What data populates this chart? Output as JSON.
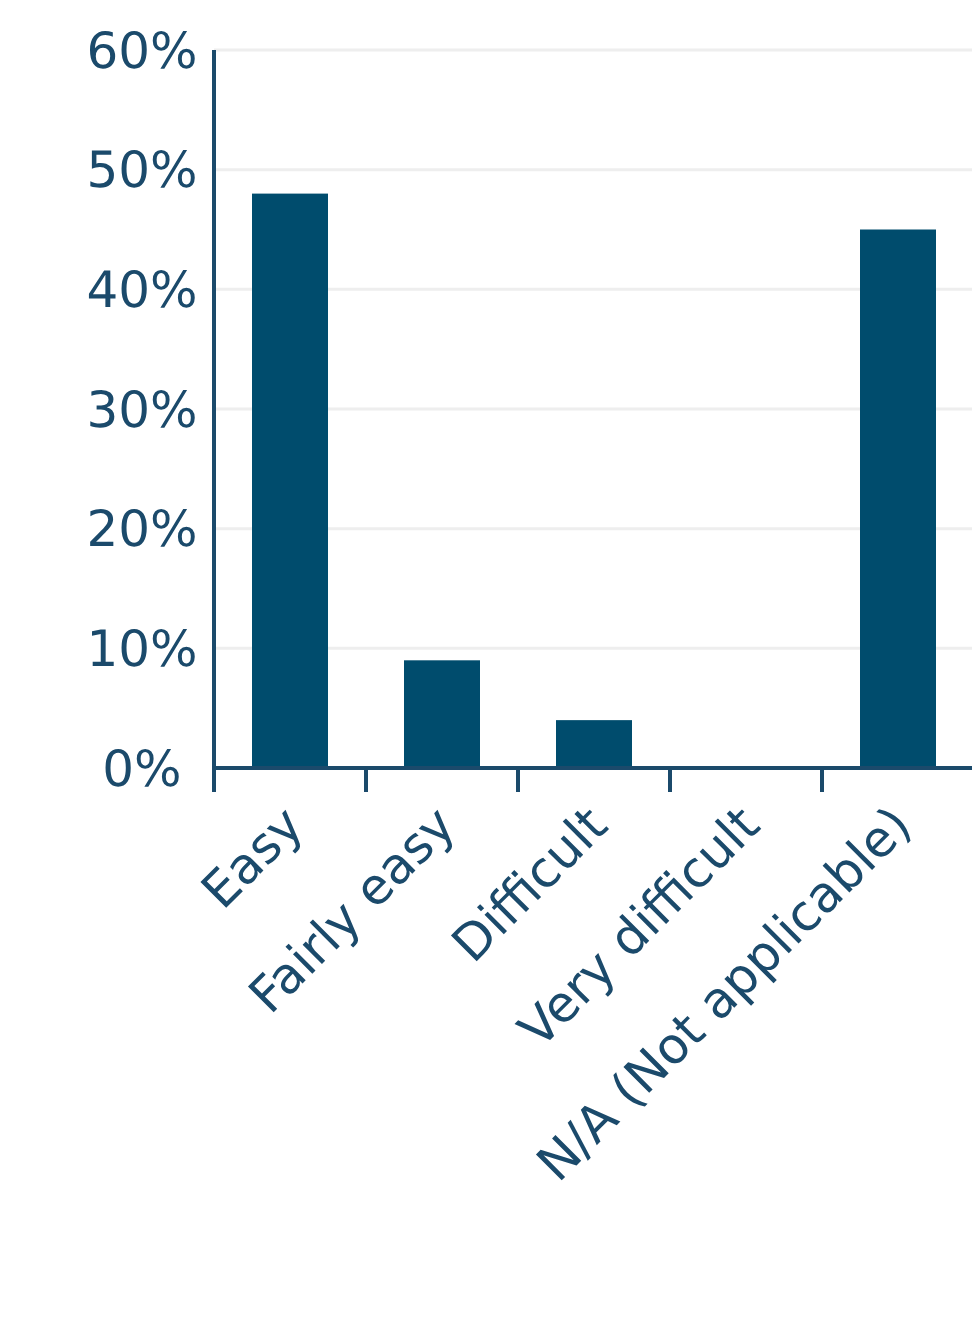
{
  "chart_data": {
    "type": "bar",
    "categories": [
      "Easy",
      "Fairly easy",
      "Difficult",
      "Very difficult",
      "N/A (Not applicable)"
    ],
    "values": [
      48,
      9,
      4,
      0,
      45
    ],
    "color": "#004c6d",
    "ylim": [
      0,
      60
    ],
    "yticks": [
      {
        "value": 0,
        "label": "0%"
      },
      {
        "value": 10,
        "label": "10%"
      },
      {
        "value": 20,
        "label": "20%"
      },
      {
        "value": 30,
        "label": "30%"
      },
      {
        "value": 40,
        "label": "40%"
      },
      {
        "value": 50,
        "label": "50%"
      },
      {
        "value": 60,
        "label": "60%"
      }
    ],
    "grid": "y"
  }
}
